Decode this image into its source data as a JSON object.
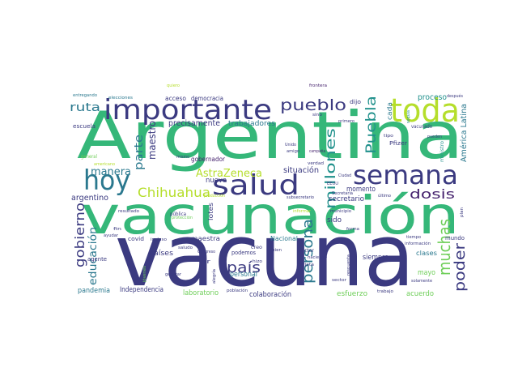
{
  "colors": {
    "background": "#ffffff",
    "dark_indigo": "#3b3a80",
    "purple": "#46236e",
    "teal": "#2a788e",
    "cyan": "#21918c",
    "green": "#35b779",
    "light_green": "#6ece58",
    "lime": "#b5de2b",
    "yellow": "#fde725"
  },
  "words": {
    "vacuna": "vacuna",
    "argentina": "Argentina",
    "vacunacion": "vacunación",
    "importante": "importante",
    "toda": "toda",
    "hoy": "hoy",
    "salud": "salud",
    "semana": "semana",
    "pueblo": "pueblo",
    "chihuahua": "Chihuahua",
    "dosis": "dosis",
    "puebla": "Puebla",
    "millones": "millones",
    "persona": "persona",
    "muchas": "muchas",
    "poder": "poder",
    "pais": "país",
    "gobierno": "gobierno",
    "educacion": "educación",
    "parte": "parte",
    "ruta": "ruta",
    "manera": "manera",
    "astrazeneca": "AstraZeneca",
    "maestro": "maestro",
    "argentino": "argentino",
    "precisamente": "precisamente",
    "trabajadores": "trabajadores",
    "democracia": "democracia",
    "acceso": "acceso",
    "proceso": "proceso",
    "situacion": "situación",
    "momento": "momento",
    "secretario": "secretario",
    "nuevo": "nuevo",
    "gobernador": "gobernador",
    "sido": "sido",
    "america_latina": "América Latina",
    "pandemia": "pandemia",
    "independencia": "Independencia",
    "laboratorio": "laboratorio",
    "colaboracion": "colaboración",
    "esfuerzo": "esfuerzo",
    "acuerdo": "acuerdo",
    "mayo": "mayo",
    "siempre": "siempre",
    "paises": "países",
    "maestra": "maestra",
    "covid": "covid",
    "nacional": "Nacional",
    "personal": "personal",
    "podemos": "podemos",
    "clases": "clases",
    "mundo": "mundo",
    "escuela": "escuela",
    "dijo": "dijo",
    "pfizer": "Pfizer",
    "vacunado": "vacunado",
    "general": "general",
    "entregando": "entregando",
    "elecciones": "elecciones",
    "quiero": "quiero",
    "frontera": "frontera",
    "despues": "después",
    "primero": "primero",
    "cada": "cada",
    "sino": "sino",
    "campana": "campaña",
    "amigo": "amigo",
    "unido": "Unido",
    "verdad": "verdad",
    "ciudad": "Ciudad",
    "secretaria": "Secretaria",
    "ultimo": "último",
    "publica": "pública",
    "municipio": "municipio",
    "informacion": "información",
    "doctor": "doctor",
    "tarjeta": "tarjeta",
    "haciendo": "haciendo",
    "creo": "creo",
    "ir": "ir",
    "mismo": "mismo",
    "lotes": "lotes",
    "generar": "generar",
    "saludo": "saludo",
    "incluso": "incluso",
    "resultado": "resultado",
    "trabajo": "trabajo",
    "sector": "sector",
    "solamente": "solamente",
    "jovenes": "jóvenes",
    "poblacion": "población",
    "alegria": "alegría",
    "plan": "plan",
    "tiempo": "tiempo",
    "ayudar": "ayudar",
    "fin": "fin",
    "tipo": "tipo",
    "pueden": "pueden",
    "sequia": "sequía",
    "bien": "bien",
    "hizo": "hizo",
    "forma": "forma",
    "agente": "agente",
    "americano": "americano",
    "respuesta": "respuesta",
    "subsecretario": "subsecretario",
    "ministro": "ministro",
    "proteccion": "protección",
    "congreso": "Congreso",
    "informar": "informar",
    "produccion": "producción",
    "eeuu": "EEUU"
  }
}
